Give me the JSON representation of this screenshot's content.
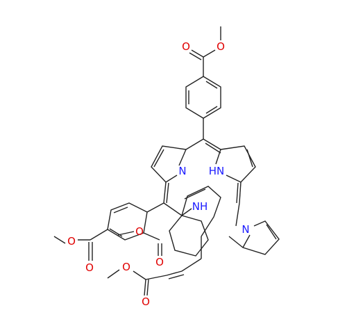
{
  "atoms": [
    {
      "label": "O"
    },
    {
      "label": "O"
    },
    {
      "label": "N"
    },
    {
      "label": "HN"
    },
    {
      "label": "NH"
    },
    {
      "label": "N"
    },
    {
      "label": "O"
    },
    {
      "label": "O"
    },
    {
      "label": "O"
    },
    {
      "label": "O"
    },
    {
      "label": "O"
    },
    {
      "label": "O"
    }
  ]
}
